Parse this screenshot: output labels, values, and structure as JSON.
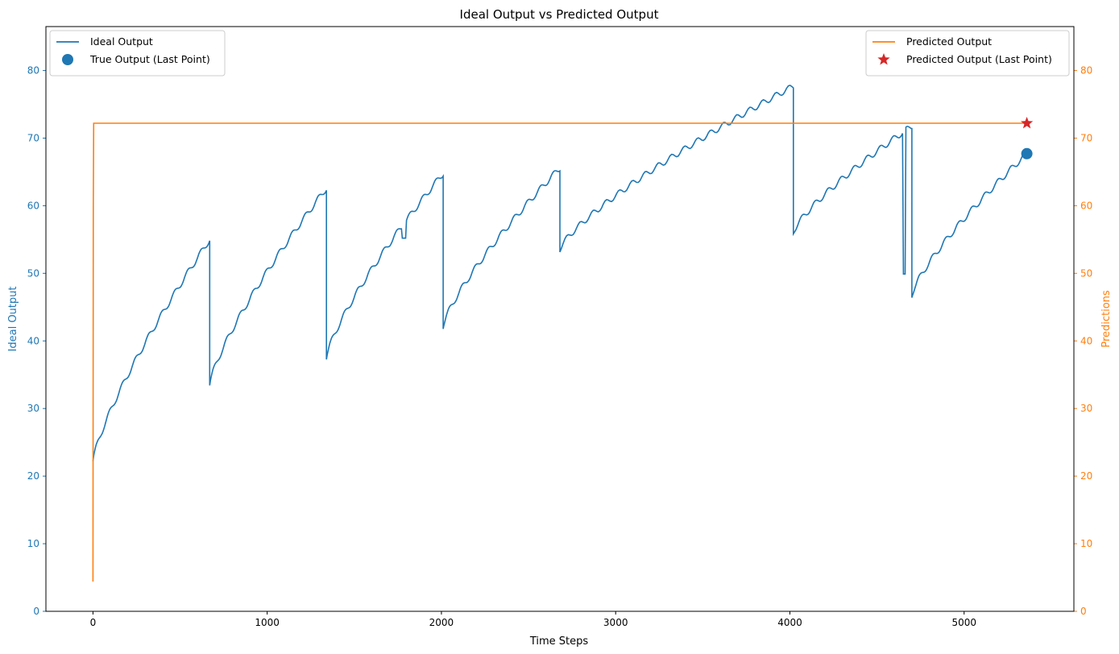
{
  "chart_data": {
    "type": "line",
    "title": "Ideal Output vs Predicted Output",
    "xlabel": "Time Steps",
    "ylabel_left": "Ideal Output",
    "ylabel_right": "Predictions",
    "xlim": [
      -270,
      5630
    ],
    "ylim_left": [
      0,
      86.5
    ],
    "ylim_right": [
      0,
      86.5
    ],
    "x_ticks": [
      0,
      1000,
      2000,
      3000,
      4000,
      5000
    ],
    "y_ticks_left": [
      0,
      10,
      20,
      30,
      40,
      50,
      60,
      70,
      80
    ],
    "y_ticks_right": [
      0,
      10,
      20,
      30,
      40,
      50,
      60,
      70,
      80
    ],
    "grid": false,
    "colors": {
      "ideal": "#1f77b4",
      "predicted": "#ff7f0e",
      "predicted_marker": "#d62728",
      "left_axis": "#1f77b4",
      "right_axis": "#ff7f0e"
    },
    "series": [
      {
        "name": "Ideal Output",
        "axis": "left",
        "segments": [
          {
            "start": 0,
            "end": 670,
            "y0": 22.2,
            "y1": 55.0
          },
          {
            "start": 670,
            "end": 1340,
            "y0": 33.6,
            "y1": 62.6
          },
          {
            "start": 1340,
            "end": 2010,
            "y0": 37.6,
            "y1": 64.8
          },
          {
            "start": 2010,
            "end": 2680,
            "y0": 42.2,
            "y1": 65.6
          },
          {
            "start": 2680,
            "end": 4020,
            "y0": 53.6,
            "y1": 77.7
          },
          {
            "start": 4020,
            "end": 4700,
            "y0": 56.1,
            "y1": 71.8
          },
          {
            "start": 4700,
            "end": 5360,
            "y0": 46.8,
            "y1": 67.7
          }
        ],
        "dips": [
          {
            "x": 1775,
            "x_end": 1795,
            "y": 55.2
          },
          {
            "x": 4650,
            "x_end": 4665,
            "y": 49.9
          }
        ]
      },
      {
        "name": "Predicted Output",
        "axis": "right",
        "points": [
          [
            0,
            4.4
          ],
          [
            2,
            60
          ],
          [
            4,
            72.2
          ],
          [
            5360,
            72.2
          ]
        ]
      }
    ],
    "markers": [
      {
        "name": "True Output (Last Point)",
        "axis": "left",
        "shape": "circle",
        "x": 5360,
        "y": 67.7
      },
      {
        "name": "Predicted Output (Last Point)",
        "axis": "right",
        "shape": "star",
        "x": 5360,
        "y": 72.2
      }
    ],
    "legend_left": {
      "position": "upper-left",
      "entries": [
        {
          "label": "Ideal Output",
          "kind": "line",
          "color": "#1f77b4"
        },
        {
          "label": "True Output (Last Point)",
          "kind": "circle",
          "color": "#1f77b4"
        }
      ]
    },
    "legend_right": {
      "position": "upper-right",
      "entries": [
        {
          "label": "Predicted Output",
          "kind": "line",
          "color": "#ff7f0e"
        },
        {
          "label": "Predicted Output (Last Point)",
          "kind": "star",
          "color": "#d62728"
        }
      ]
    }
  }
}
